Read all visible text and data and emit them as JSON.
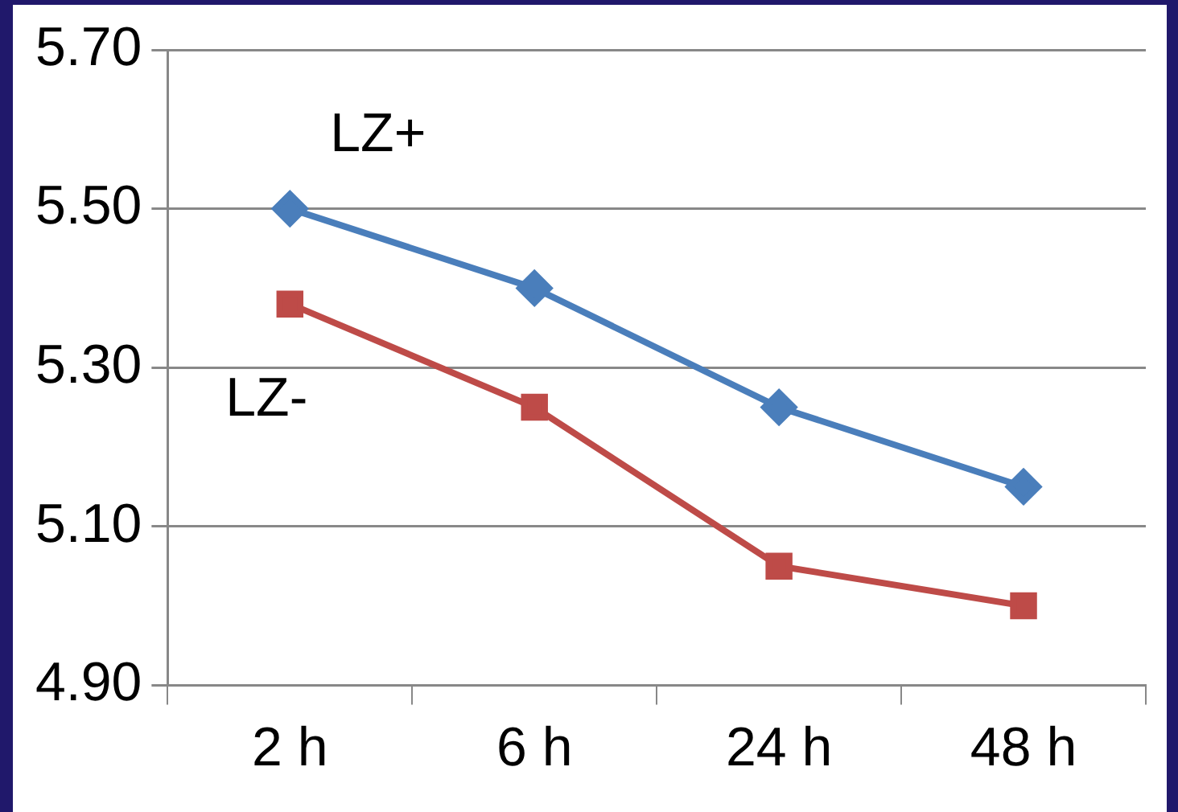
{
  "chart_data": {
    "type": "line",
    "categories": [
      "2 h",
      "6 h",
      "24 h",
      "48 h"
    ],
    "series": [
      {
        "name": "LZ+",
        "color": "#4a7ebb",
        "marker": "diamond",
        "values": [
          5.5,
          5.4,
          5.25,
          5.15
        ]
      },
      {
        "name": "LZ-",
        "color": "#be4b48",
        "marker": "square",
        "values": [
          5.38,
          5.25,
          5.05,
          5.0
        ]
      }
    ],
    "ylim": [
      4.9,
      5.7
    ],
    "yticks": [
      {
        "value": 4.9,
        "label": "4.90"
      },
      {
        "value": 5.1,
        "label": "5.10"
      },
      {
        "value": 5.3,
        "label": "5.30"
      },
      {
        "value": 5.5,
        "label": "5.50"
      },
      {
        "value": 5.7,
        "label": "5.70"
      }
    ],
    "grid": "y",
    "legend": false
  }
}
